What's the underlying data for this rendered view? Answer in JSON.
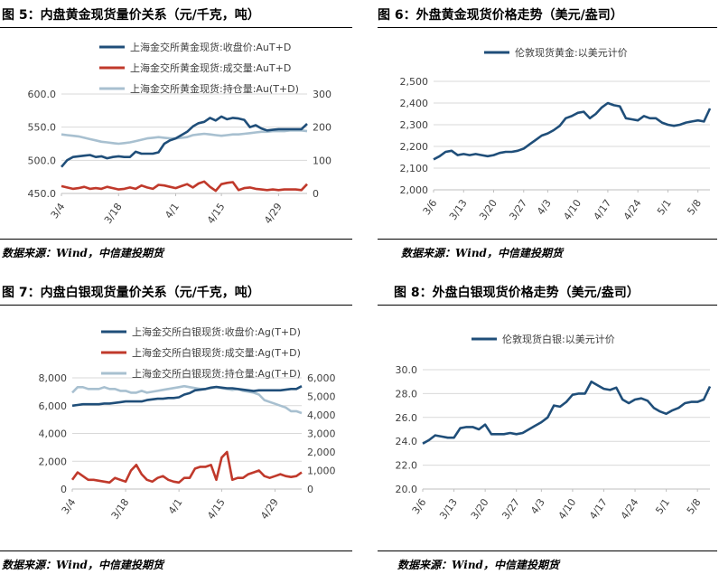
{
  "panels": [
    {
      "title": "图 5：内盘黄金现货量价关系（元/千克，吨）",
      "source": "数据来源：Wind，中信建投期货",
      "chart_data": {
        "type": "line",
        "x": [
          "3/4",
          "3/5",
          "3/6",
          "3/7",
          "3/8",
          "3/11",
          "3/12",
          "3/13",
          "3/14",
          "3/15",
          "3/18",
          "3/19",
          "3/20",
          "3/21",
          "3/22",
          "3/25",
          "3/26",
          "3/27",
          "3/28",
          "3/29",
          "4/1",
          "4/2",
          "4/3",
          "4/8",
          "4/9",
          "4/10",
          "4/11",
          "4/12",
          "4/15",
          "4/16",
          "4/17",
          "4/18",
          "4/19",
          "4/22",
          "4/23",
          "4/24",
          "4/25",
          "4/26",
          "4/29",
          "4/30",
          "5/6",
          "5/7",
          "5/8",
          "5/9"
        ],
        "x_ticks": [
          "3/4",
          "3/18",
          "4/1",
          "4/15",
          "4/29"
        ],
        "series": [
          {
            "name": "上海金交所黄金现货:收盘价:AuT+D",
            "axis": "left",
            "color": "#1f4e79",
            "values": [
              490,
              500,
              505,
              506,
              507,
              508,
              505,
              506,
              503,
              505,
              506,
              505,
              505,
              513,
              510,
              510,
              510,
              512,
              525,
              530,
              533,
              538,
              543,
              551,
              556,
              558,
              564,
              560,
              566,
              562,
              564,
              563,
              561,
              550,
              553,
              548,
              545,
              546,
              547,
              547,
              547,
              547,
              547,
              555
            ]
          },
          {
            "name": "上海金交所黄金现货:成交量:AuT+D",
            "axis": "right",
            "color": "#c0392b",
            "values": [
              22,
              18,
              14,
              16,
              20,
              14,
              16,
              14,
              20,
              16,
              12,
              14,
              18,
              14,
              24,
              18,
              14,
              26,
              24,
              20,
              16,
              22,
              28,
              18,
              30,
              36,
              20,
              8,
              28,
              32,
              34,
              10,
              16,
              18,
              14,
              12,
              10,
              12,
              10,
              12,
              12,
              12,
              10,
              28
            ]
          },
          {
            "name": "上海金交所黄金现货:持仓量:Au(T+D)",
            "axis": "right",
            "color": "#a8c0d0",
            "values": [
              178,
              176,
              174,
              172,
              168,
              164,
              160,
              156,
              154,
              152,
              150,
              152,
              154,
              158,
              162,
              166,
              168,
              170,
              168,
              166,
              166,
              168,
              170,
              176,
              178,
              180,
              178,
              176,
              174,
              176,
              178,
              178,
              180,
              182,
              184,
              186,
              186,
              188,
              188,
              188,
              190,
              190,
              190,
              188
            ]
          }
        ],
        "ylim_left": [
          450,
          600
        ],
        "yticks_left": [
          "450.0",
          "500.0",
          "550.0",
          "600.0"
        ],
        "ylim_right": [
          0,
          300
        ],
        "yticks_right": [
          "0",
          "100",
          "200",
          "300"
        ],
        "legend": "top"
      }
    },
    {
      "title": "图 6：外盘黄金现货价格走势（美元/盎司）",
      "source": "数据来源：Wind，中信建投期货",
      "chart_data": {
        "type": "line",
        "x": [
          "3/6",
          "3/7",
          "3/8",
          "3/11",
          "3/12",
          "3/13",
          "3/14",
          "3/15",
          "3/18",
          "3/19",
          "3/20",
          "3/21",
          "3/22",
          "3/25",
          "3/26",
          "3/27",
          "3/28",
          "4/1",
          "4/2",
          "4/3",
          "4/4",
          "4/5",
          "4/8",
          "4/9",
          "4/10",
          "4/11",
          "4/12",
          "4/15",
          "4/16",
          "4/17",
          "4/18",
          "4/19",
          "4/22",
          "4/23",
          "4/24",
          "4/25",
          "4/26",
          "4/29",
          "4/30",
          "5/1",
          "5/2",
          "5/3",
          "5/6",
          "5/7",
          "5/8",
          "5/9",
          "5/10"
        ],
        "x_ticks": [
          "3/6",
          "3/13",
          "3/20",
          "3/27",
          "4/3",
          "4/10",
          "4/17",
          "4/24",
          "5/1",
          "5/8"
        ],
        "series": [
          {
            "name": "伦敦现货黄金:以美元计价",
            "axis": "left",
            "color": "#1f4e79",
            "values": [
              2140,
              2155,
              2175,
              2180,
              2160,
              2165,
              2160,
              2165,
              2160,
              2155,
              2160,
              2170,
              2175,
              2175,
              2180,
              2190,
              2210,
              2230,
              2250,
              2260,
              2275,
              2295,
              2330,
              2340,
              2355,
              2360,
              2330,
              2350,
              2380,
              2400,
              2390,
              2385,
              2330,
              2325,
              2320,
              2340,
              2330,
              2330,
              2310,
              2300,
              2295,
              2300,
              2310,
              2315,
              2320,
              2315,
              2375
            ]
          }
        ],
        "ylim_left": [
          2000,
          2500
        ],
        "yticks_left": [
          "2,000",
          "2,100",
          "2,200",
          "2,300",
          "2,400",
          "2,500"
        ],
        "legend": "top"
      }
    },
    {
      "title": "图 7：内盘白银现货量价关系（元/千克，吨）",
      "source": "数据来源：Wind，中信建投期货",
      "chart_data": {
        "type": "line",
        "x": [
          "3/4",
          "3/5",
          "3/6",
          "3/7",
          "3/8",
          "3/11",
          "3/12",
          "3/13",
          "3/14",
          "3/15",
          "3/18",
          "3/19",
          "3/20",
          "3/21",
          "3/22",
          "3/25",
          "3/26",
          "3/27",
          "3/28",
          "3/29",
          "4/1",
          "4/2",
          "4/3",
          "4/8",
          "4/9",
          "4/10",
          "4/11",
          "4/12",
          "4/15",
          "4/16",
          "4/17",
          "4/18",
          "4/19",
          "4/22",
          "4/23",
          "4/24",
          "4/25",
          "4/26",
          "4/29",
          "4/30",
          "5/6",
          "5/7",
          "5/8",
          "5/9"
        ],
        "x_ticks": [
          "3/4",
          "3/18",
          "4/1",
          "4/15",
          "4/29"
        ],
        "series": [
          {
            "name": "上海金交所白银现货:收盘价:Ag(T+D)",
            "axis": "left",
            "color": "#1f4e79",
            "values": [
              6000,
              6050,
              6100,
              6100,
              6100,
              6100,
              6150,
              6150,
              6200,
              6250,
              6300,
              6300,
              6300,
              6300,
              6400,
              6450,
              6500,
              6500,
              6550,
              6550,
              6600,
              6800,
              6900,
              7100,
              7150,
              7200,
              7300,
              7350,
              7300,
              7250,
              7250,
              7200,
              7150,
              7100,
              7050,
              7100,
              7100,
              7100,
              7100,
              7100,
              7150,
              7200,
              7200,
              7400
            ]
          },
          {
            "name": "上海金交所白银现货:成交量:Ag(T+D)",
            "axis": "right",
            "color": "#c0392b",
            "values": [
              500,
              900,
              700,
              500,
              500,
              450,
              400,
              350,
              600,
              500,
              400,
              1000,
              1300,
              800,
              500,
              400,
              600,
              700,
              500,
              400,
              350,
              600,
              600,
              1100,
              1200,
              1200,
              1300,
              500,
              1700,
              2000,
              500,
              600,
              600,
              800,
              900,
              1000,
              700,
              600,
              700,
              800,
              700,
              650,
              700,
              900
            ]
          },
          {
            "name": "上海金交所白银现货:持仓量:Ag(T+D)",
            "axis": "right",
            "color": "#a8c0d0",
            "values": [
              5200,
              5500,
              5500,
              5400,
              5400,
              5400,
              5500,
              5400,
              5400,
              5300,
              5300,
              5200,
              5200,
              5300,
              5200,
              5250,
              5300,
              5350,
              5400,
              5450,
              5500,
              5550,
              5500,
              5450,
              5400,
              5400,
              5450,
              5500,
              5450,
              5400,
              5350,
              5400,
              5300,
              5250,
              5200,
              5100,
              4800,
              4700,
              4600,
              4500,
              4400,
              4200,
              4200,
              4100
            ]
          }
        ],
        "ylim_left": [
          0,
          8000
        ],
        "yticks_left": [
          "0",
          "2,000",
          "4,000",
          "6,000",
          "8,000"
        ],
        "ylim_right": [
          0,
          6000
        ],
        "yticks_right": [
          "0",
          "1,000",
          "2,000",
          "3,000",
          "4,000",
          "5,000",
          "6,000"
        ],
        "legend": "top"
      }
    },
    {
      "title": "图 8：外盘白银现货价格走势（美元/盎司）",
      "source": "数据来源：Wind，中信建投期货",
      "chart_data": {
        "type": "line",
        "x": [
          "3/6",
          "3/7",
          "3/8",
          "3/11",
          "3/12",
          "3/13",
          "3/14",
          "3/15",
          "3/18",
          "3/19",
          "3/20",
          "3/21",
          "3/22",
          "3/25",
          "3/26",
          "3/27",
          "3/28",
          "4/1",
          "4/2",
          "4/3",
          "4/4",
          "4/5",
          "4/8",
          "4/9",
          "4/10",
          "4/11",
          "4/12",
          "4/15",
          "4/16",
          "4/17",
          "4/18",
          "4/19",
          "4/22",
          "4/23",
          "4/24",
          "4/25",
          "4/26",
          "4/29",
          "4/30",
          "5/1",
          "5/2",
          "5/3",
          "5/6",
          "5/7",
          "5/8",
          "5/9",
          "5/10"
        ],
        "x_ticks": [
          "3/6",
          "3/13",
          "3/20",
          "3/27",
          "4/3",
          "4/10",
          "4/17",
          "4/24",
          "5/1",
          "5/8"
        ],
        "series": [
          {
            "name": "伦敦现货白银:以美元计价",
            "axis": "left",
            "color": "#1f4e79",
            "values": [
              23.8,
              24.1,
              24.5,
              24.4,
              24.3,
              24.3,
              25.1,
              25.2,
              25.2,
              25.0,
              25.4,
              24.6,
              24.6,
              24.6,
              24.7,
              24.6,
              24.7,
              25.0,
              25.3,
              25.6,
              26.0,
              27.0,
              26.9,
              27.3,
              27.9,
              28.0,
              28.0,
              29.0,
              28.7,
              28.4,
              28.3,
              28.5,
              27.5,
              27.2,
              27.5,
              27.6,
              27.4,
              26.8,
              26.5,
              26.3,
              26.6,
              26.8,
              27.2,
              27.3,
              27.3,
              27.5,
              28.6
            ]
          }
        ],
        "ylim_left": [
          20,
          30
        ],
        "yticks_left": [
          "20.0",
          "22.0",
          "24.0",
          "26.0",
          "28.0",
          "30.0"
        ],
        "legend": "top"
      }
    }
  ]
}
